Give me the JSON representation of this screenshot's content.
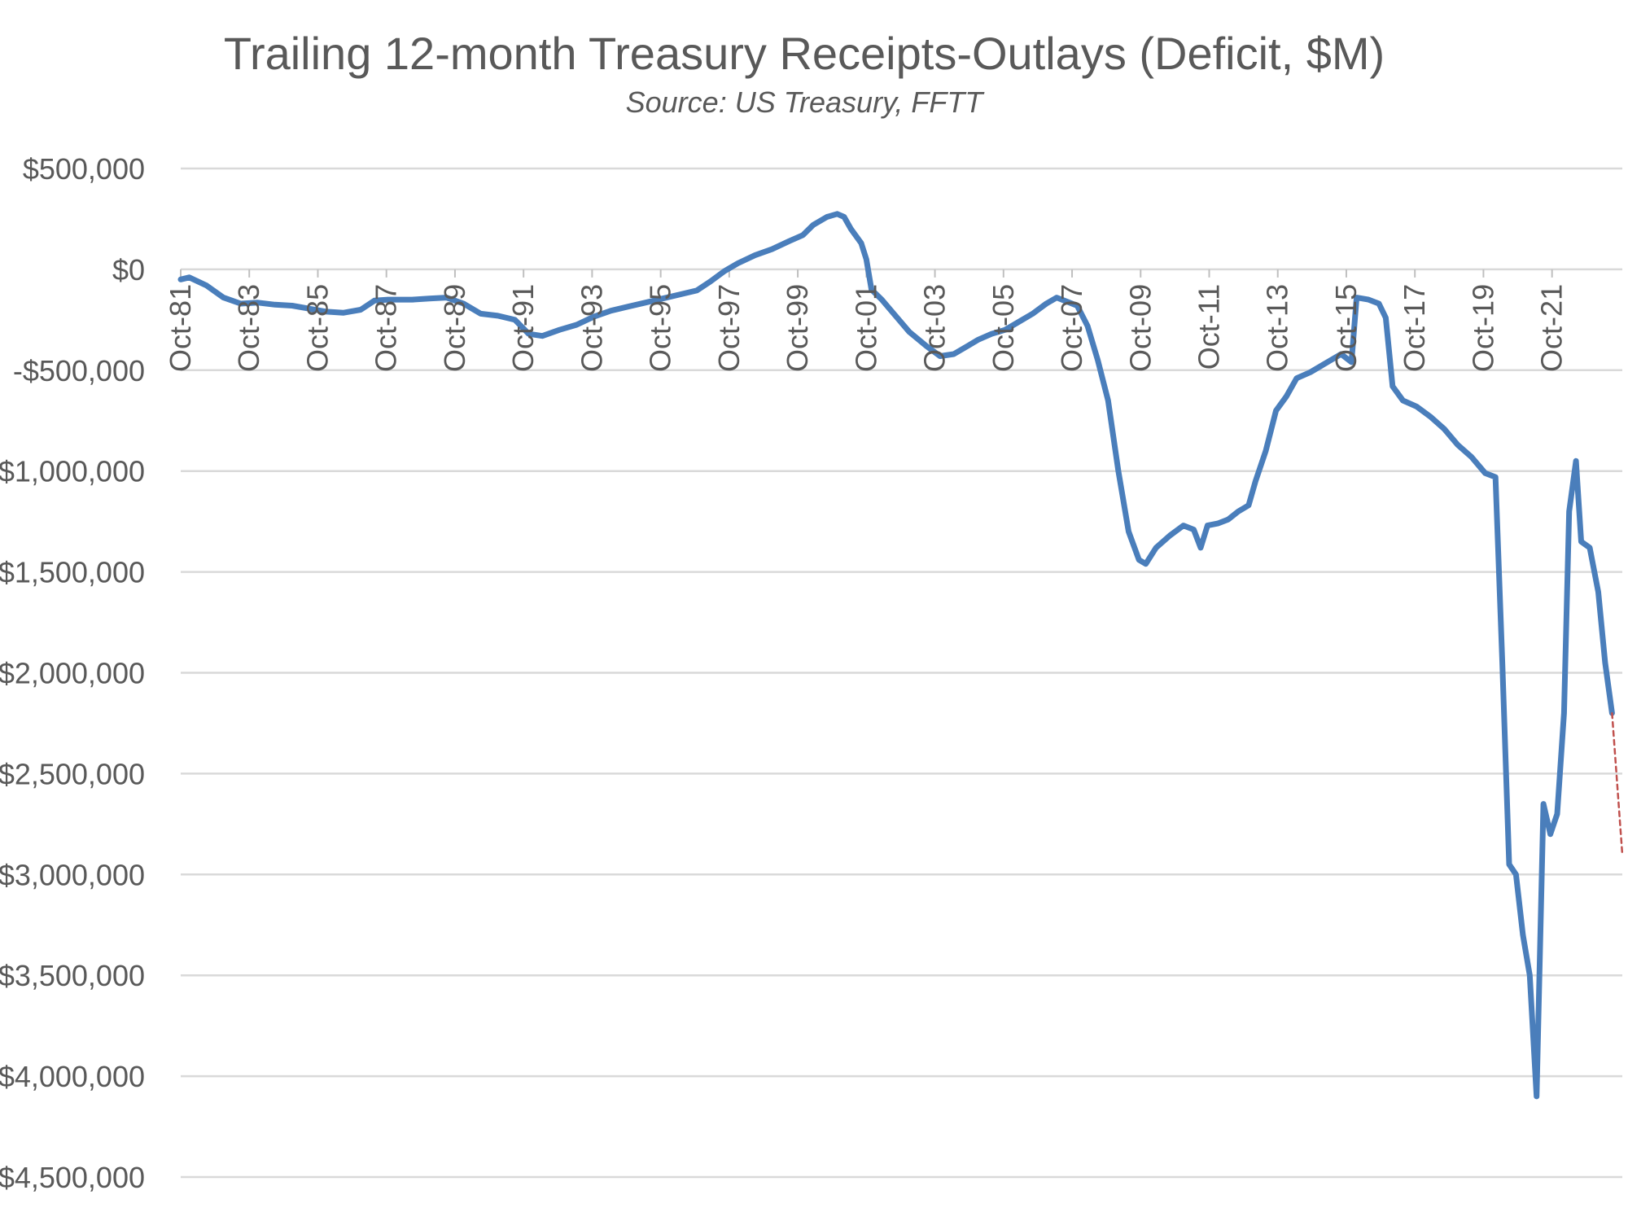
{
  "chart_data": {
    "type": "line",
    "title": "Trailing 12-month Treasury Receipts-Outlays (Deficit, $M)",
    "subtitle": "Source: US Treasury, FFTT",
    "xlabel": "",
    "ylabel": "",
    "ylim": [
      -4500000,
      500000
    ],
    "yticks": [
      500000,
      0,
      -500000,
      -1000000,
      -1500000,
      -2000000,
      -2500000,
      -3000000,
      -3500000,
      -4000000,
      -4500000
    ],
    "ytick_labels": [
      "$500,000",
      "$0",
      "-$500,000",
      "-$1,000,000",
      "-$1,500,000",
      "-$2,000,000",
      "-$2,500,000",
      "-$3,000,000",
      "-$3,500,000",
      "-$4,000,000",
      "-$4,500,000"
    ],
    "xlim": [
      1981.75,
      2023.8
    ],
    "xticks": [
      1981.75,
      1983.75,
      1985.75,
      1987.75,
      1989.75,
      1991.75,
      1993.75,
      1995.75,
      1997.75,
      1999.75,
      2001.75,
      2003.75,
      2005.75,
      2007.75,
      2009.75,
      2011.75,
      2013.75,
      2015.75,
      2017.75,
      2019.75,
      2021.75
    ],
    "xtick_labels": [
      "Oct-81",
      "Oct-83",
      "Oct-85",
      "Oct-87",
      "Oct-89",
      "Oct-91",
      "Oct-93",
      "Oct-95",
      "Oct-97",
      "Oct-99",
      "Oct-01",
      "Oct-03",
      "Oct-05",
      "Oct-07",
      "Oct-09",
      "Oct-11",
      "Oct-13",
      "Oct-15",
      "Oct-17",
      "Oct-19",
      "Oct-21"
    ],
    "grid": true,
    "series": [
      {
        "color": "#4a7ebb",
        "points": [
          [
            1981.75,
            -50000
          ],
          [
            1982.0,
            -40000
          ],
          [
            1982.5,
            -80000
          ],
          [
            1983.0,
            -140000
          ],
          [
            1983.5,
            -170000
          ],
          [
            1984.0,
            -165000
          ],
          [
            1984.5,
            -175000
          ],
          [
            1985.0,
            -180000
          ],
          [
            1985.5,
            -195000
          ],
          [
            1986.0,
            -210000
          ],
          [
            1986.5,
            -215000
          ],
          [
            1987.0,
            -200000
          ],
          [
            1987.4,
            -155000
          ],
          [
            1987.8,
            -150000
          ],
          [
            1988.5,
            -150000
          ],
          [
            1989.0,
            -145000
          ],
          [
            1989.5,
            -140000
          ],
          [
            1990.0,
            -170000
          ],
          [
            1990.5,
            -220000
          ],
          [
            1991.0,
            -230000
          ],
          [
            1991.5,
            -250000
          ],
          [
            1991.9,
            -320000
          ],
          [
            1992.3,
            -330000
          ],
          [
            1992.8,
            -300000
          ],
          [
            1993.3,
            -275000
          ],
          [
            1993.8,
            -235000
          ],
          [
            1994.3,
            -205000
          ],
          [
            1994.8,
            -185000
          ],
          [
            1995.3,
            -165000
          ],
          [
            1995.8,
            -145000
          ],
          [
            1996.3,
            -125000
          ],
          [
            1996.8,
            -105000
          ],
          [
            1997.2,
            -60000
          ],
          [
            1997.6,
            -10000
          ],
          [
            1998.0,
            30000
          ],
          [
            1998.5,
            70000
          ],
          [
            1999.0,
            100000
          ],
          [
            1999.5,
            140000
          ],
          [
            1999.9,
            170000
          ],
          [
            2000.2,
            220000
          ],
          [
            2000.6,
            260000
          ],
          [
            2000.9,
            275000
          ],
          [
            2001.1,
            260000
          ],
          [
            2001.3,
            200000
          ],
          [
            2001.6,
            130000
          ],
          [
            2001.75,
            50000
          ],
          [
            2001.9,
            -100000
          ],
          [
            2002.2,
            -150000
          ],
          [
            2002.6,
            -230000
          ],
          [
            2003.0,
            -310000
          ],
          [
            2003.5,
            -380000
          ],
          [
            2003.9,
            -430000
          ],
          [
            2004.3,
            -420000
          ],
          [
            2004.7,
            -380000
          ],
          [
            2005.0,
            -350000
          ],
          [
            2005.4,
            -320000
          ],
          [
            2005.8,
            -300000
          ],
          [
            2006.2,
            -260000
          ],
          [
            2006.6,
            -220000
          ],
          [
            2007.0,
            -170000
          ],
          [
            2007.3,
            -140000
          ],
          [
            2007.6,
            -160000
          ],
          [
            2007.9,
            -180000
          ],
          [
            2008.2,
            -280000
          ],
          [
            2008.5,
            -450000
          ],
          [
            2008.8,
            -650000
          ],
          [
            2009.1,
            -1000000
          ],
          [
            2009.4,
            -1300000
          ],
          [
            2009.7,
            -1440000
          ],
          [
            2009.9,
            -1460000
          ],
          [
            2010.2,
            -1380000
          ],
          [
            2010.6,
            -1320000
          ],
          [
            2011.0,
            -1270000
          ],
          [
            2011.3,
            -1290000
          ],
          [
            2011.5,
            -1380000
          ],
          [
            2011.7,
            -1270000
          ],
          [
            2012.0,
            -1260000
          ],
          [
            2012.3,
            -1240000
          ],
          [
            2012.6,
            -1200000
          ],
          [
            2012.9,
            -1170000
          ],
          [
            2013.1,
            -1050000
          ],
          [
            2013.4,
            -900000
          ],
          [
            2013.7,
            -700000
          ],
          [
            2014.0,
            -630000
          ],
          [
            2014.3,
            -540000
          ],
          [
            2014.7,
            -510000
          ],
          [
            2015.0,
            -480000
          ],
          [
            2015.3,
            -450000
          ],
          [
            2015.6,
            -420000
          ],
          [
            2015.9,
            -460000
          ],
          [
            2016.05,
            -140000
          ],
          [
            2016.4,
            -150000
          ],
          [
            2016.7,
            -170000
          ],
          [
            2016.9,
            -240000
          ],
          [
            2017.1,
            -580000
          ],
          [
            2017.4,
            -650000
          ],
          [
            2017.8,
            -680000
          ],
          [
            2018.2,
            -730000
          ],
          [
            2018.6,
            -790000
          ],
          [
            2019.0,
            -870000
          ],
          [
            2019.4,
            -930000
          ],
          [
            2019.8,
            -1010000
          ],
          [
            2020.1,
            -1030000
          ],
          [
            2020.3,
            -1950000
          ],
          [
            2020.5,
            -2950000
          ],
          [
            2020.7,
            -3000000
          ],
          [
            2020.9,
            -3300000
          ],
          [
            2021.1,
            -3500000
          ],
          [
            2021.3,
            -4100000
          ],
          [
            2021.5,
            -2650000
          ],
          [
            2021.7,
            -2800000
          ],
          [
            2021.9,
            -2700000
          ],
          [
            2022.1,
            -2200000
          ],
          [
            2022.25,
            -1200000
          ],
          [
            2022.45,
            -950000
          ],
          [
            2022.6,
            -1350000
          ],
          [
            2022.85,
            -1380000
          ],
          [
            2023.1,
            -1600000
          ],
          [
            2023.3,
            -1950000
          ],
          [
            2023.5,
            -2200000
          ]
        ]
      },
      {
        "color": "#c0504d",
        "dashed": true,
        "points": [
          [
            2023.5,
            -2200000
          ],
          [
            2023.8,
            -2900000
          ]
        ]
      }
    ]
  }
}
